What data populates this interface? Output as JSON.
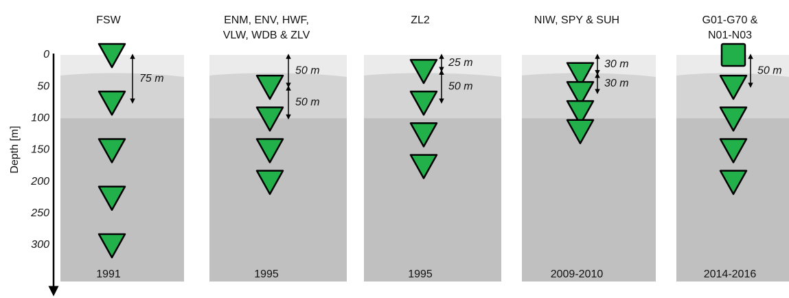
{
  "axis": {
    "label": "Depth [m]",
    "ticks": [
      0,
      50,
      100,
      150,
      200,
      250,
      300
    ],
    "lim": [
      0,
      300
    ]
  },
  "panels": [
    {
      "title": [
        "FSW"
      ],
      "year": "1991",
      "depths": [
        0,
        75,
        150,
        225,
        300
      ],
      "square_depth": null,
      "spacings": [
        {
          "label": "75 m",
          "top": 0,
          "bottom": 75
        }
      ]
    },
    {
      "title": [
        "ENM, ENV, HWF,",
        "VLW, WDB & ZLV"
      ],
      "year": "1995",
      "depths": [
        50,
        100,
        150,
        200
      ],
      "square_depth": null,
      "spacings": [
        {
          "label": "50 m",
          "top": 0,
          "bottom": 50
        },
        {
          "label": "50 m",
          "top": 50,
          "bottom": 100
        }
      ]
    },
    {
      "title": [
        "ZL2"
      ],
      "year": "1995",
      "depths": [
        25,
        75,
        125,
        175
      ],
      "square_depth": null,
      "spacings": [
        {
          "label": "25 m",
          "top": 0,
          "bottom": 25
        },
        {
          "label": "50 m",
          "top": 25,
          "bottom": 75
        }
      ]
    },
    {
      "title": [
        "NIW, SPY & SUH"
      ],
      "year": "2009-2010",
      "depths": [
        30,
        60,
        90,
        120
      ],
      "square_depth": null,
      "spacings": [
        {
          "label": "30 m",
          "top": 0,
          "bottom": 30
        },
        {
          "label": "30 m",
          "top": 30,
          "bottom": 60
        }
      ]
    },
    {
      "title": [
        "G01-G70 &",
        "N01-N03"
      ],
      "year": "2014-2016",
      "depths": [
        50,
        100,
        150,
        200
      ],
      "square_depth": 0,
      "spacings": [
        {
          "label": "50 m",
          "top": 0,
          "bottom": 50
        }
      ]
    }
  ]
}
